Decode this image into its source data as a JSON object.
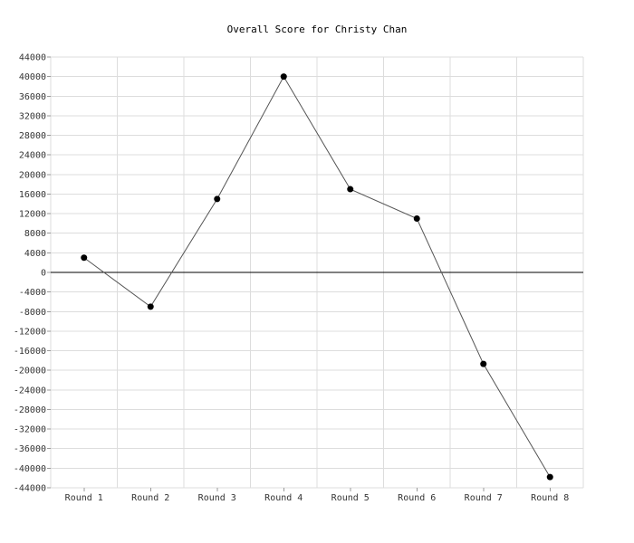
{
  "chart_data": {
    "type": "line",
    "title": "Overall Score for Christy Chan",
    "xlabel": "",
    "ylabel": "",
    "categories": [
      "Round 1",
      "Round 2",
      "Round 3",
      "Round 4",
      "Round 5",
      "Round 6",
      "Round 7",
      "Round 8"
    ],
    "series": [
      {
        "values": [
          3000,
          -7000,
          15000,
          40000,
          17000,
          11000,
          -18700,
          -41800
        ]
      }
    ],
    "ylim": [
      -44000,
      44000
    ],
    "yticks": [
      44000,
      40000,
      36000,
      32000,
      28000,
      24000,
      20000,
      16000,
      12000,
      8000,
      4000,
      0,
      -4000,
      -8000,
      -12000,
      -16000,
      -20000,
      -24000,
      -28000,
      -32000,
      -36000,
      -40000,
      -44000
    ],
    "grid": true,
    "legend": "none",
    "colors": {
      "line": "#555555",
      "marker": "#000000",
      "grid": "#dddddd",
      "zero_line": "#000000"
    }
  }
}
